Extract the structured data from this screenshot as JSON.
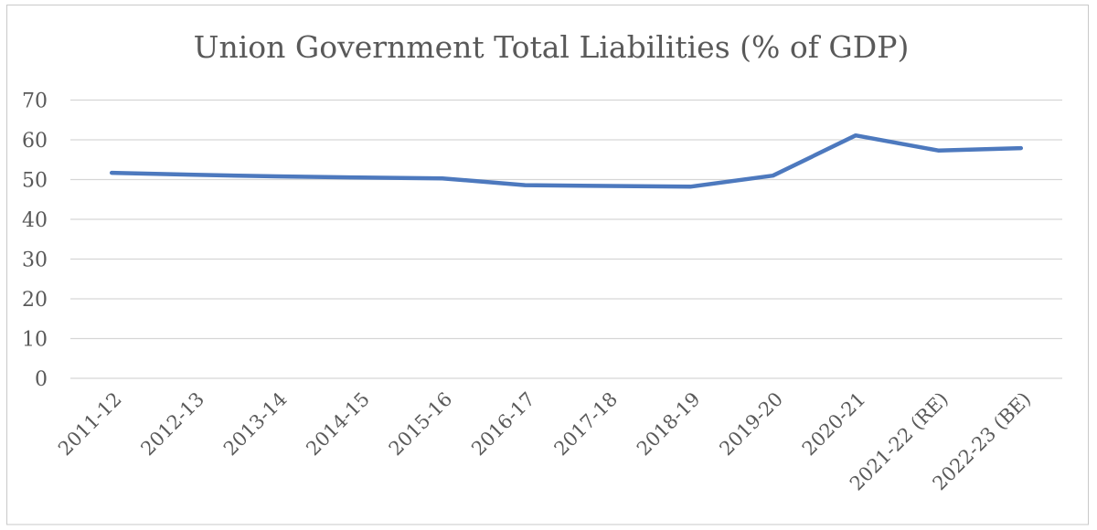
{
  "chart_data": {
    "type": "line",
    "title": "Union Government Total Liabilities (% of GDP)",
    "categories": [
      "2011-12",
      "2012-13",
      "2013-14",
      "2014-15",
      "2015-16",
      "2016-17",
      "2017-18",
      "2018-19",
      "2019-20",
      "2020-21",
      "2021-22 (RE)",
      "2022-23 (BE)"
    ],
    "values": [
      51.7,
      51.2,
      50.8,
      50.5,
      50.3,
      48.6,
      48.4,
      48.2,
      51.0,
      61.1,
      57.3,
      57.9
    ],
    "xlabel": "",
    "ylabel": "",
    "ylim": [
      0,
      70
    ],
    "ytick_step": 10,
    "grid": true,
    "legend_position": "none",
    "line_color": "#4d79be",
    "text_color": "#595959",
    "grid_color": "#d6d6d6",
    "border_color": "#c9c9c9",
    "background_color": "#ffffff"
  }
}
